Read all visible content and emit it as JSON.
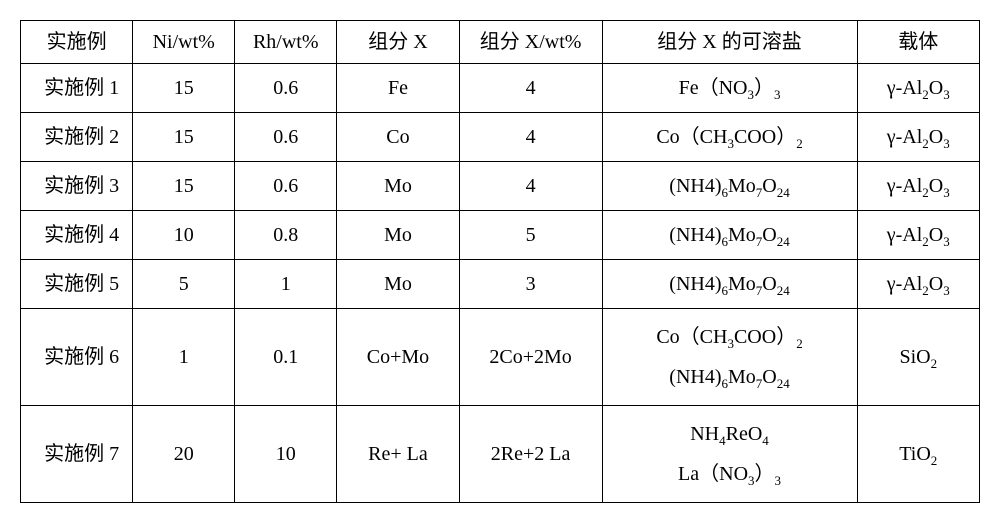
{
  "table": {
    "headers": {
      "example": "实施例",
      "ni": "Ni/wt%",
      "rh": "Rh/wt%",
      "x": "组分 X",
      "xwt": "组分 X/wt%",
      "salt": "组分 X 的可溶盐",
      "carrier": "载体"
    },
    "rows": [
      {
        "example": "实施例 1",
        "ni": "15",
        "rh": "0.6",
        "x": "Fe",
        "xwt": "4",
        "salt_html": "Fe（NO<sub>3</sub>）<sub>3</sub>",
        "carrier_html": "γ-Al<sub>2</sub>O<sub>3</sub>",
        "tall": false
      },
      {
        "example": "实施例 2",
        "ni": "15",
        "rh": "0.6",
        "x": "Co",
        "xwt": "4",
        "salt_html": "Co（CH<sub>3</sub>COO）<sub>2</sub>",
        "carrier_html": "γ-Al<sub>2</sub>O<sub>3</sub>",
        "tall": false
      },
      {
        "example": "实施例 3",
        "ni": "15",
        "rh": "0.6",
        "x": "Mo",
        "xwt": "4",
        "salt_html": "(NH4)<sub>6</sub>Mo<sub>7</sub>O<sub>24</sub>",
        "carrier_html": "γ-Al<sub>2</sub>O<sub>3</sub>",
        "tall": false
      },
      {
        "example": "实施例 4",
        "ni": "10",
        "rh": "0.8",
        "x": "Mo",
        "xwt": "5",
        "salt_html": "(NH4)<sub>6</sub>Mo<sub>7</sub>O<sub>24</sub>",
        "carrier_html": "γ-Al<sub>2</sub>O<sub>3</sub>",
        "tall": false
      },
      {
        "example": "实施例 5",
        "ni": "5",
        "rh": "1",
        "x": "Mo",
        "xwt": "3",
        "salt_html": "(NH4)<sub>6</sub>Mo<sub>7</sub>O<sub>24</sub>",
        "carrier_html": "γ-Al<sub>2</sub>O<sub>3</sub>",
        "tall": false
      },
      {
        "example": "实施例 6",
        "ni": "1",
        "rh": "0.1",
        "x": "Co+Mo",
        "xwt": "2Co+2Mo",
        "salt_html": "<div class='multi'><span>Co（CH<sub>3</sub>COO）<sub>2</sub></span><span>(NH4)<sub>6</sub>Mo<sub>7</sub>O<sub>24</sub></span></div>",
        "carrier_html": "SiO<sub>2</sub>",
        "tall": true
      },
      {
        "example": "实施例 7",
        "ni": "20",
        "rh": "10",
        "x": "Re+ La",
        "xwt": "2Re+2 La",
        "salt_html": "<div class='multi'><span>NH<sub>4</sub>ReO<sub>4</sub></span><span>La（NO<sub>3</sub>）<sub>3</sub></span></div>",
        "carrier_html": "TiO<sub>2</sub>",
        "tall": true
      }
    ]
  }
}
